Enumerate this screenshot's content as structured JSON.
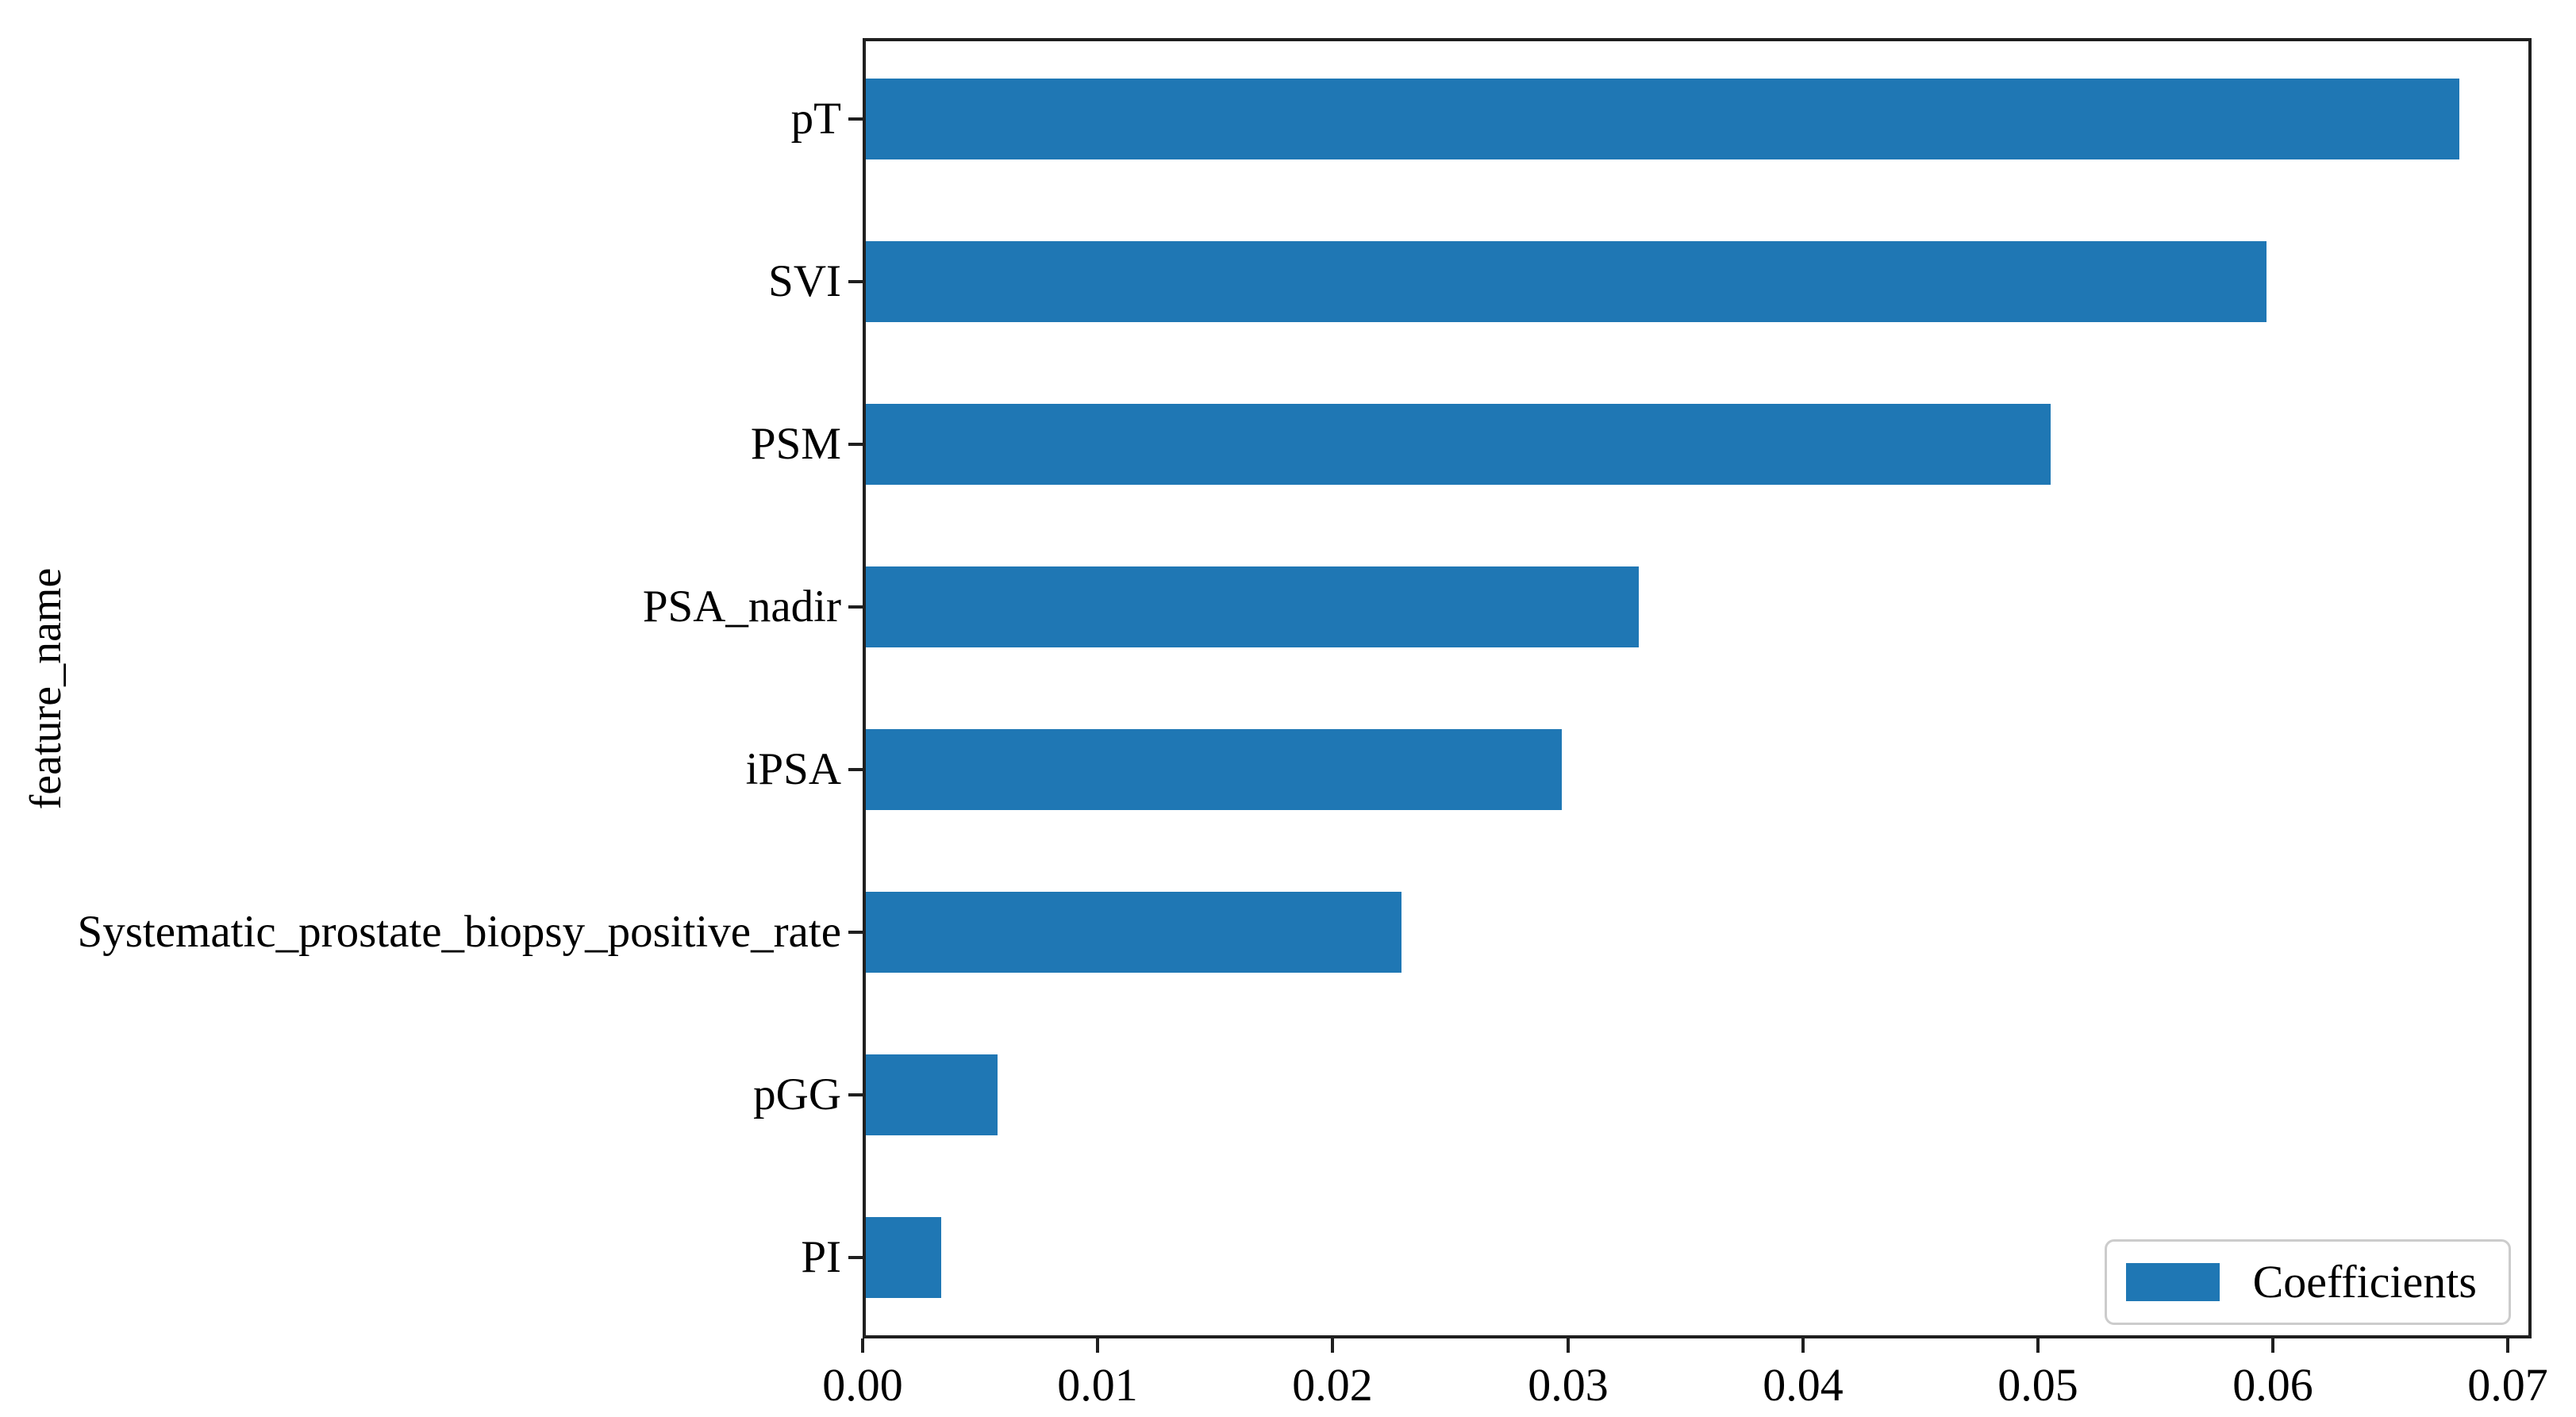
{
  "chart_data": {
    "type": "bar",
    "orientation": "horizontal",
    "title": "",
    "xlabel": "",
    "ylabel": "feature_name",
    "categories": [
      "pT",
      "SVI",
      "PSM",
      "PSA_nadir",
      "iPSA",
      "Systematic_prostate_biopsy_positive_rate",
      "pGG",
      "PI"
    ],
    "series": [
      {
        "name": "Coefficients",
        "values": [
          0.0678,
          0.0596,
          0.0504,
          0.0329,
          0.0296,
          0.0228,
          0.0056,
          0.0032
        ]
      }
    ],
    "x_tick_labels": [
      "0.00",
      "0.01",
      "0.02",
      "0.03",
      "0.04",
      "0.05",
      "0.06",
      "0.07"
    ],
    "x_tick_values": [
      0.0,
      0.01,
      0.02,
      0.03,
      0.04,
      0.05,
      0.06,
      0.07
    ],
    "xlim": [
      0,
      0.071
    ],
    "grid": false,
    "legend": {
      "label": "Coefficients",
      "position": "lower right"
    },
    "colors": {
      "bar": "#1f77b4",
      "axis": "#1f1f1f",
      "legend_border": "#cccccc",
      "text": "#000000"
    }
  }
}
